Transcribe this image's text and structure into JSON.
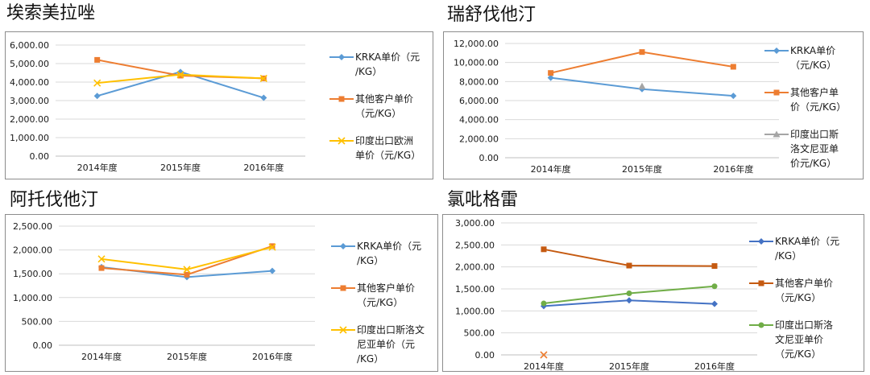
{
  "colors": {
    "blue": "#5b9bd5",
    "orange": "#ed7d31",
    "gray": "#a5a5a5",
    "yellow": "#ffc000",
    "green": "#70ad47",
    "grid": "#d9d9d9"
  },
  "chart_data": [
    {
      "id": "c1",
      "type": "line",
      "title": "埃索美拉唑",
      "categories": [
        "2014年度",
        "2015年度",
        "2016年度"
      ],
      "ylim": [
        0,
        6000
      ],
      "ytick_step": 1000,
      "yticks": [
        "0.00",
        "1,000.00",
        "2,000.00",
        "3,000.00",
        "4,000.00",
        "5,000.00",
        "6,000.00"
      ],
      "grid": true,
      "legend_position": "right",
      "series": [
        {
          "name": "KRKA单价（元\n/KG）",
          "color": "#5b9bd5",
          "marker": "diamond",
          "values": [
            3250,
            4550,
            3150
          ]
        },
        {
          "name": "其他客户单价\n（元/KG）",
          "color": "#ed7d31",
          "marker": "square",
          "values": [
            5200,
            4350,
            4200
          ]
        },
        {
          "name": "印度出口欧洲\n单价（元/KG）",
          "color": "#ffc000",
          "marker": "x",
          "values": [
            3950,
            4400,
            4200
          ]
        }
      ]
    },
    {
      "id": "c2",
      "type": "line",
      "title": "瑞舒伐他汀",
      "categories": [
        "2014年度",
        "2015年度",
        "2016年度"
      ],
      "ylim": [
        0,
        12000
      ],
      "ytick_step": 2000,
      "yticks": [
        "0.00",
        "2,000.00",
        "4,000.00",
        "6,000.00",
        "8,000.00",
        "10,000.00",
        "12,000.00"
      ],
      "grid": true,
      "legend_position": "right",
      "series": [
        {
          "name": "KRKA单价\n（元/KG）",
          "color": "#5b9bd5",
          "marker": "diamond",
          "values": [
            8400,
            7200,
            6500
          ]
        },
        {
          "name": "其他客户单\n价（元/KG）",
          "color": "#ed7d31",
          "marker": "square",
          "values": [
            8900,
            11100,
            9550
          ]
        },
        {
          "name": "印度出口斯\n洛文尼亚单\n价元/KG）",
          "color": "#a5a5a5",
          "marker": "triangle",
          "values": [
            null,
            7500,
            null
          ]
        }
      ]
    },
    {
      "id": "c3",
      "type": "line",
      "title": "阿托伐他汀",
      "categories": [
        "2014年度",
        "2015年度",
        "2016年度"
      ],
      "ylim": [
        0,
        2500
      ],
      "ytick_step": 500,
      "yticks": [
        "0.00",
        "500.00",
        "1,000.00",
        "1,500.00",
        "2,000.00",
        "2,500.00"
      ],
      "grid": true,
      "legend_position": "right",
      "series": [
        {
          "name": "KRKA单价（元\n/KG）",
          "color": "#5b9bd5",
          "marker": "diamond",
          "values": [
            1640,
            1430,
            1560
          ]
        },
        {
          "name": "其他客户单价\n（元/KG）",
          "color": "#ed7d31",
          "marker": "square",
          "values": [
            1620,
            1480,
            2080
          ]
        },
        {
          "name": "印度出口斯洛文\n尼亚单价（元\n/KG）",
          "color": "#ffc000",
          "marker": "x",
          "values": [
            1810,
            1590,
            2060
          ]
        }
      ]
    },
    {
      "id": "c4",
      "type": "line",
      "title": "氯吡格雷",
      "categories": [
        "2014年度",
        "2015年度",
        "2016年度"
      ],
      "ylim": [
        0,
        3000
      ],
      "ytick_step": 500,
      "yticks": [
        "0.00",
        "500.00",
        "1,000.00",
        "1,500.00",
        "2,000.00",
        "2,500.00",
        "3,000.00"
      ],
      "grid": true,
      "legend_position": "right",
      "series": [
        {
          "name": "KRKA单价（元\n/KG）",
          "color": "#4472c4",
          "marker": "diamond",
          "values": [
            1110,
            1240,
            1160
          ]
        },
        {
          "name": "其他客户单价\n（元/KG）",
          "color": "#c55a11",
          "marker": "square",
          "values": [
            2400,
            2030,
            2020
          ]
        },
        {
          "name": "印度出口斯洛\n文尼亚单价\n（元/KG）",
          "color": "#70ad47",
          "marker": "circle",
          "values": [
            1170,
            1400,
            1560
          ]
        }
      ],
      "extra_marks": [
        {
          "marker": "x",
          "color": "#ed7d31",
          "category": 0,
          "value": 0
        }
      ]
    }
  ]
}
